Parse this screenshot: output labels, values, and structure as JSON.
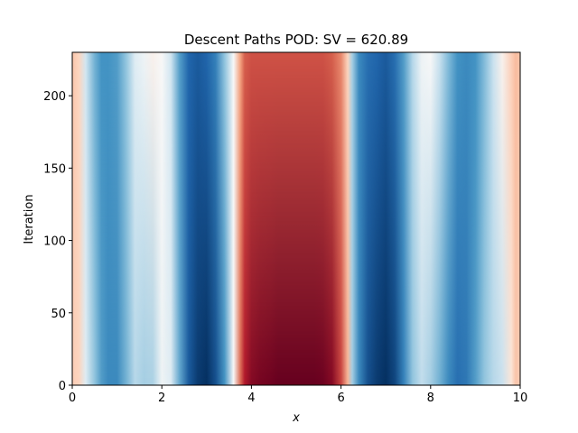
{
  "chart_data": {
    "type": "heatmap",
    "title": "Descent Paths POD: SV = 620.89",
    "xlabel": "x",
    "ylabel": "Iteration",
    "xlim": [
      0,
      10
    ],
    "ylim": [
      0,
      230
    ],
    "xticks": [
      0,
      2,
      4,
      6,
      8,
      10
    ],
    "yticks": [
      0,
      50,
      100,
      150,
      200
    ],
    "colormap": "RdBu_r",
    "grid": false,
    "color_range": [
      -1,
      1
    ],
    "x_profile": {
      "x": [
        0.0,
        0.15,
        0.3,
        0.5,
        0.65,
        0.8,
        1.0,
        1.2,
        1.4,
        1.6,
        1.8,
        2.0,
        2.2,
        2.4,
        2.6,
        2.8,
        3.0,
        3.2,
        3.4,
        3.6,
        3.75,
        3.85,
        4.0,
        4.2,
        4.4,
        4.6,
        4.8,
        5.0,
        5.2,
        5.4,
        5.6,
        5.8,
        6.0,
        6.15,
        6.25,
        6.4,
        6.6,
        6.8,
        7.0,
        7.2,
        7.4,
        7.6,
        7.8,
        8.0,
        8.2,
        8.4,
        8.6,
        8.8,
        9.0,
        9.2,
        9.4,
        9.6,
        9.8,
        9.9,
        10.0
      ],
      "value_bottom": [
        0.12,
        0.1,
        -0.05,
        -0.25,
        -0.45,
        -0.55,
        -0.55,
        -0.35,
        -0.15,
        -0.2,
        -0.18,
        -0.02,
        -0.05,
        -0.4,
        -0.8,
        -0.95,
        -1.0,
        -0.85,
        -0.5,
        0.0,
        0.45,
        0.75,
        0.9,
        0.95,
        0.97,
        1.0,
        1.0,
        1.0,
        1.0,
        1.0,
        0.98,
        0.9,
        0.6,
        0.2,
        -0.2,
        -0.55,
        -0.85,
        -0.95,
        -1.0,
        -0.9,
        -0.6,
        -0.25,
        -0.12,
        -0.2,
        -0.35,
        -0.55,
        -0.7,
        -0.65,
        -0.45,
        -0.25,
        -0.15,
        -0.1,
        0.05,
        0.15,
        0.12
      ],
      "value_top": [
        0.15,
        0.1,
        -0.08,
        -0.35,
        -0.5,
        -0.5,
        -0.45,
        -0.25,
        -0.05,
        -0.02,
        0.02,
        0.0,
        -0.08,
        -0.45,
        -0.75,
        -0.8,
        -0.75,
        -0.6,
        -0.25,
        0.0,
        0.25,
        0.5,
        0.55,
        0.55,
        0.55,
        0.55,
        0.55,
        0.55,
        0.55,
        0.55,
        0.55,
        0.5,
        0.35,
        0.1,
        -0.2,
        -0.55,
        -0.7,
        -0.75,
        -0.8,
        -0.7,
        -0.45,
        -0.15,
        -0.02,
        0.0,
        -0.1,
        -0.3,
        -0.5,
        -0.55,
        -0.5,
        -0.3,
        -0.1,
        0.02,
        0.12,
        0.18,
        0.15
      ]
    }
  }
}
